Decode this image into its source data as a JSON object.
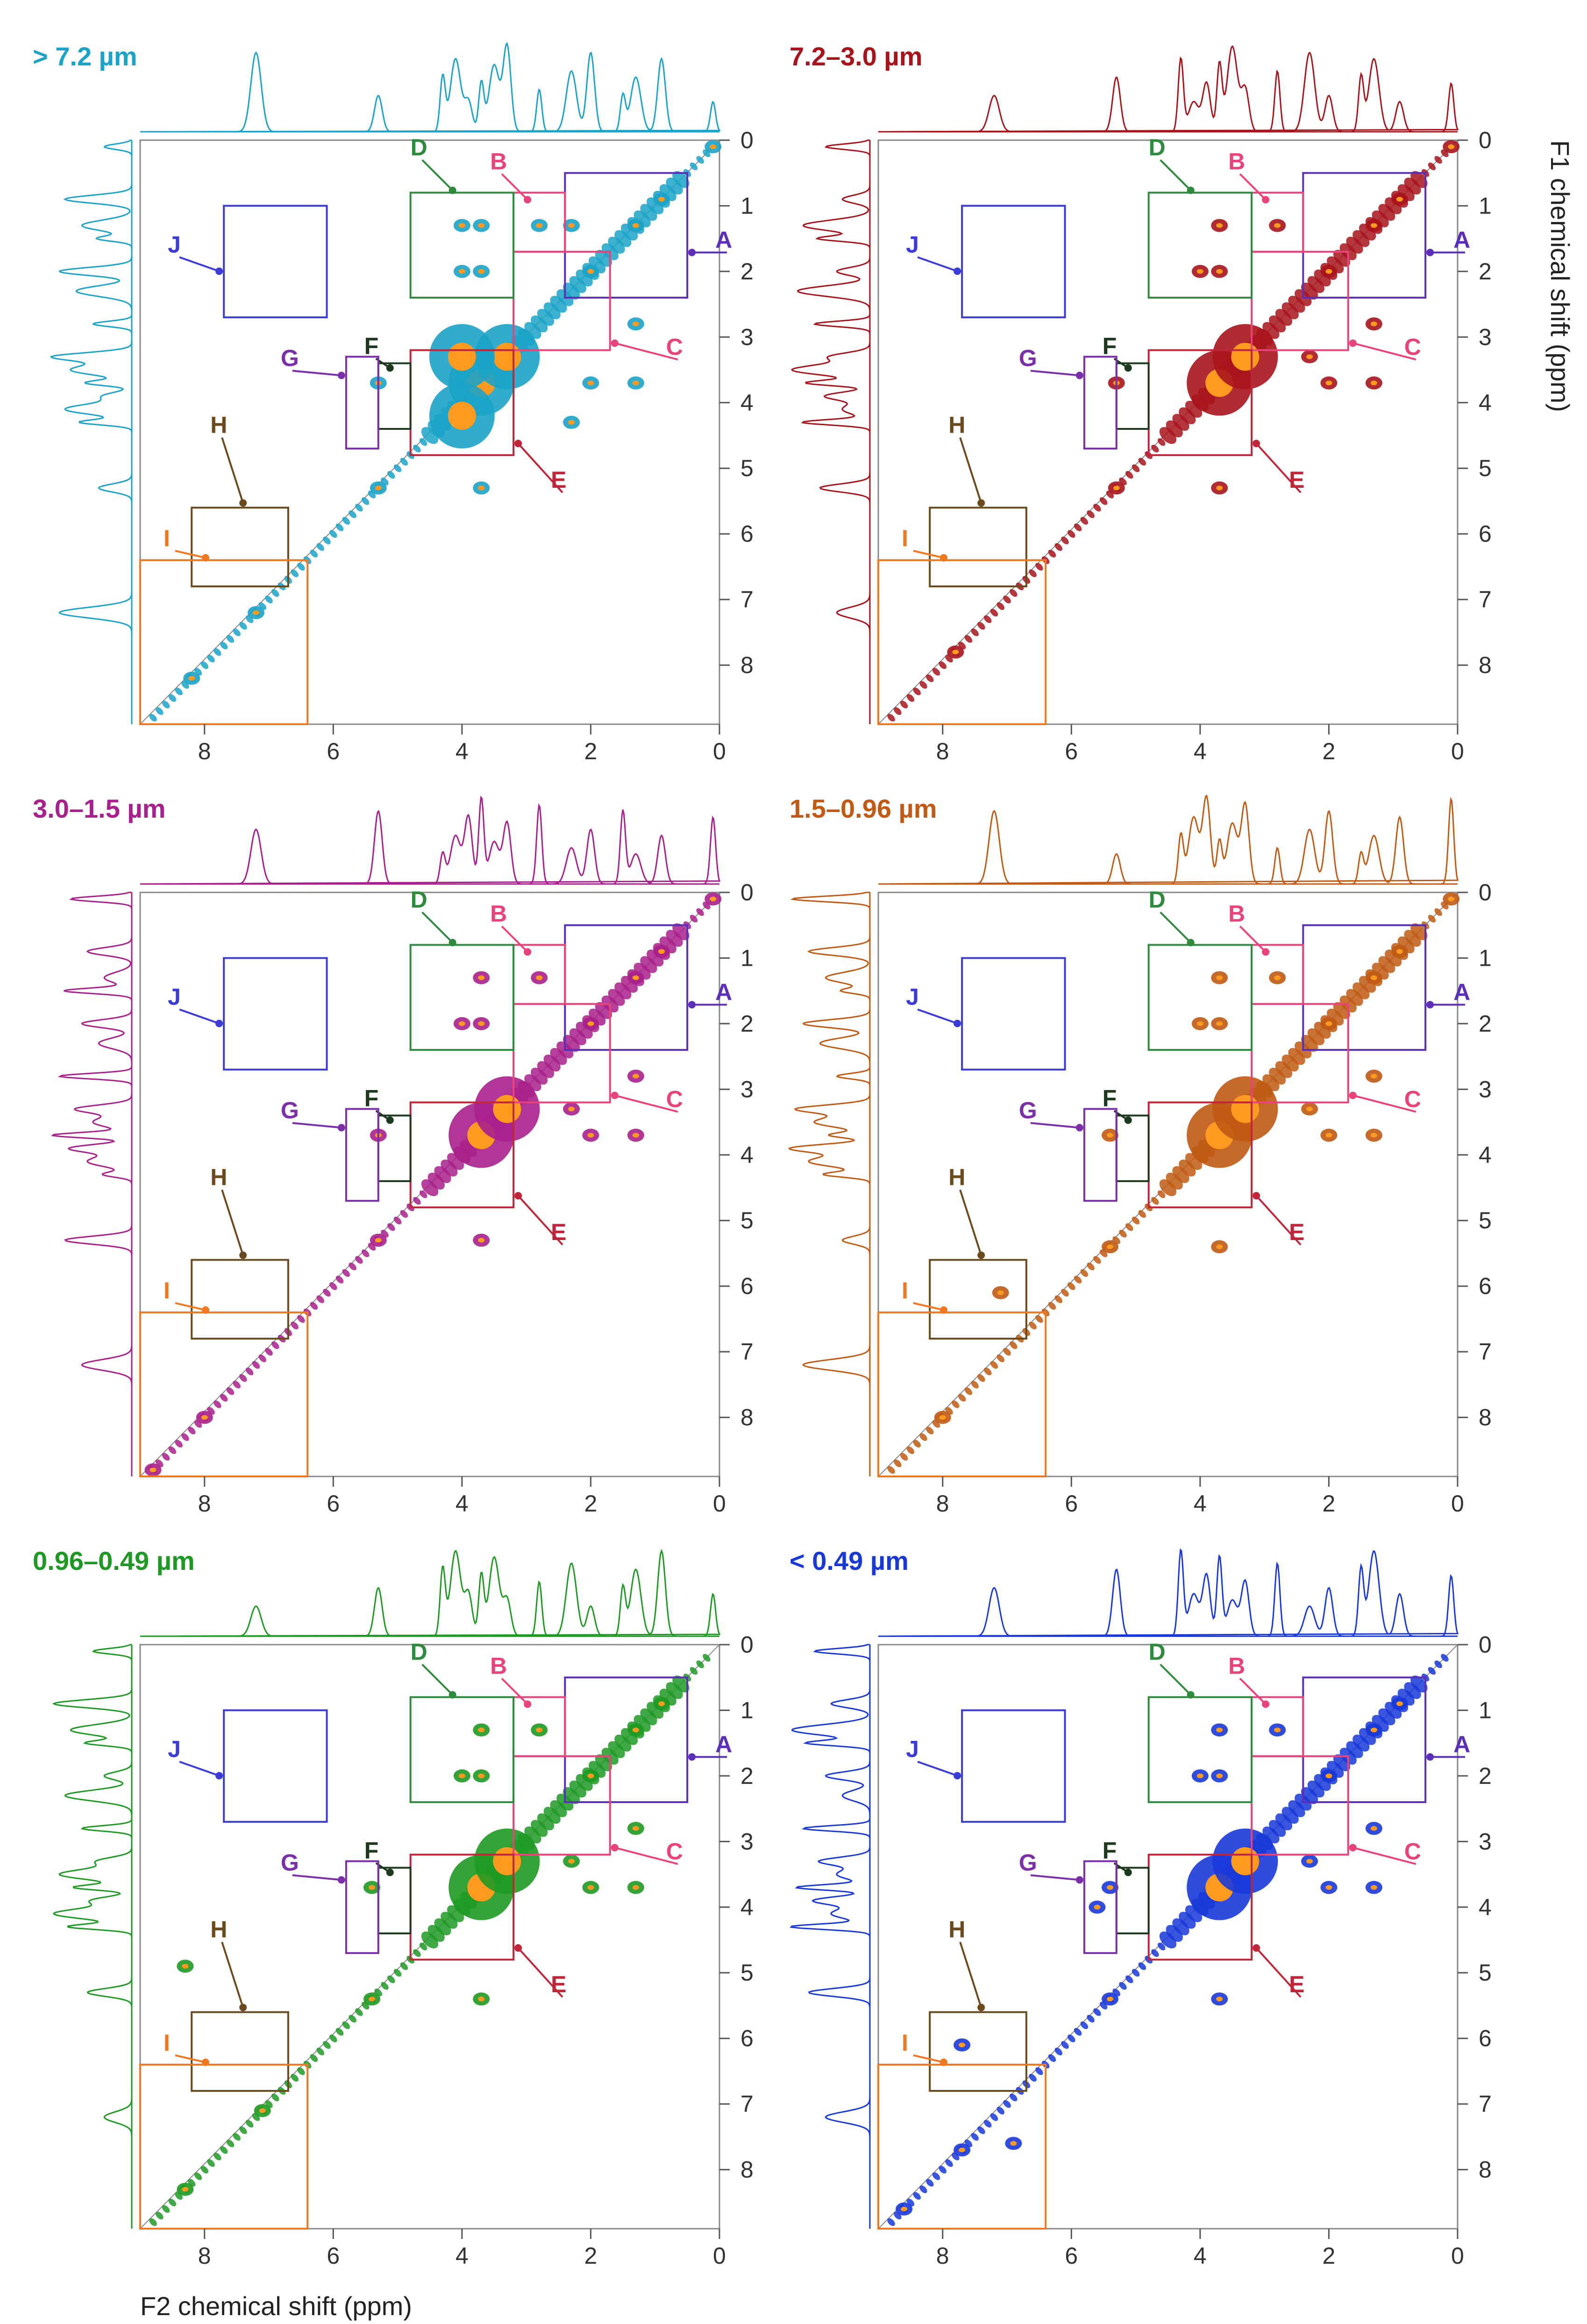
{
  "chart_data": {
    "type": "scatter",
    "description_type": "2D NMR COSY-style spectra with 1D projections",
    "x_axis": {
      "label": "F2 chemical shift (ppm)",
      "range": [
        9,
        0
      ],
      "ticks": [
        8,
        6,
        4,
        2,
        0
      ]
    },
    "y_axis": {
      "label": "F1 chemical shift (ppm)",
      "range": [
        0,
        8.5
      ],
      "ticks": [
        0,
        1,
        2,
        3,
        4,
        5,
        6,
        7,
        8
      ]
    },
    "regions": [
      {
        "label": "A",
        "x": [
          0.5,
          2.4
        ],
        "y": [
          0.5,
          2.4
        ],
        "color": "#5b2fb8"
      },
      {
        "label": "B",
        "x": [
          2.4,
          3.2
        ],
        "y": [
          0.8,
          1.7
        ],
        "color": "#e8437a"
      },
      {
        "label": "C",
        "x": [
          1.7,
          3.2
        ],
        "y": [
          1.7,
          3.2
        ],
        "color": "#e8437a"
      },
      {
        "label": "D",
        "x": [
          3.2,
          4.8
        ],
        "y": [
          0.8,
          2.4
        ],
        "color": "#2e8b3e"
      },
      {
        "label": "E",
        "x": [
          3.2,
          4.8
        ],
        "y": [
          3.2,
          4.8
        ],
        "color": "#c0263a"
      },
      {
        "label": "F",
        "x": [
          4.8,
          5.3
        ],
        "y": [
          3.4,
          4.4
        ],
        "color": "#1e3a1e"
      },
      {
        "label": "G",
        "x": [
          5.3,
          5.8
        ],
        "y": [
          3.3,
          4.7
        ],
        "color": "#7b2fa8"
      },
      {
        "label": "H",
        "x": [
          6.7,
          8.2
        ],
        "y": [
          5.6,
          6.8
        ],
        "color": "#6b4a1e"
      },
      {
        "label": "I",
        "x": [
          6.4,
          9.0
        ],
        "y": [
          6.4,
          9.0
        ],
        "color": "#f07820"
      },
      {
        "label": "J",
        "x": [
          6.1,
          7.7
        ],
        "y": [
          1.0,
          2.7
        ],
        "color": "#3b3bd8"
      }
    ],
    "panels": [
      {
        "title": "> 7.2 µm",
        "color": "#1ba3c8",
        "regions_shown": [
          "A",
          "B",
          "C",
          "D",
          "E",
          "F",
          "G",
          "H",
          "I",
          "J"
        ],
        "peaks": [
          [
            0.1,
            0.1
          ],
          [
            3.7,
            3.7
          ],
          [
            3.3,
            3.3
          ],
          [
            2.0,
            2.0
          ],
          [
            1.3,
            1.3
          ],
          [
            0.9,
            0.9
          ],
          [
            5.3,
            5.3
          ],
          [
            7.2,
            7.2
          ],
          [
            8.2,
            8.2
          ],
          [
            3.7,
            1.3
          ],
          [
            3.7,
            2.0
          ],
          [
            2.0,
            3.7
          ],
          [
            1.3,
            3.7
          ],
          [
            3.7,
            5.3
          ],
          [
            5.3,
            3.7
          ],
          [
            2.8,
            1.3
          ],
          [
            1.3,
            2.8
          ],
          [
            4.0,
            1.3
          ],
          [
            4.0,
            2.0
          ],
          [
            4.0,
            3.3
          ],
          [
            4.0,
            4.2
          ],
          [
            2.3,
            4.3
          ],
          [
            2.3,
            1.3
          ]
        ]
      },
      {
        "title": "7.2–3.0 µm",
        "color": "#a8141c",
        "regions_shown": [
          "A",
          "B",
          "C",
          "D",
          "E",
          "F",
          "G",
          "H",
          "I",
          "J"
        ],
        "peaks": [
          [
            0.1,
            0.1
          ],
          [
            3.7,
            3.7
          ],
          [
            3.3,
            3.3
          ],
          [
            2.0,
            2.0
          ],
          [
            1.3,
            1.3
          ],
          [
            0.9,
            0.9
          ],
          [
            5.3,
            5.3
          ],
          [
            7.8,
            7.8
          ],
          [
            3.7,
            1.3
          ],
          [
            3.7,
            2.0
          ],
          [
            2.0,
            3.7
          ],
          [
            1.3,
            3.7
          ],
          [
            3.7,
            5.3
          ],
          [
            5.3,
            3.7
          ],
          [
            2.8,
            1.3
          ],
          [
            1.3,
            2.8
          ],
          [
            4.0,
            2.0
          ],
          [
            2.3,
            3.3
          ]
        ]
      },
      {
        "title": "3.0–1.5 µm",
        "color": "#a8208c",
        "regions_shown": [
          "A",
          "B",
          "C",
          "D",
          "E",
          "F",
          "G",
          "H",
          "I",
          "J"
        ],
        "peaks": [
          [
            0.1,
            0.1
          ],
          [
            3.7,
            3.7
          ],
          [
            3.3,
            3.3
          ],
          [
            2.0,
            2.0
          ],
          [
            1.3,
            1.3
          ],
          [
            0.9,
            0.9
          ],
          [
            5.3,
            5.3
          ],
          [
            8.0,
            8.0
          ],
          [
            3.7,
            1.3
          ],
          [
            3.7,
            2.0
          ],
          [
            2.0,
            3.7
          ],
          [
            1.3,
            3.7
          ],
          [
            3.7,
            5.3
          ],
          [
            5.3,
            3.7
          ],
          [
            2.8,
            1.3
          ],
          [
            1.3,
            2.8
          ],
          [
            4.0,
            2.0
          ],
          [
            2.3,
            3.3
          ],
          [
            8.8,
            8.8
          ]
        ]
      },
      {
        "title": "1.5–0.96 µm",
        "color": "#c05a14",
        "regions_shown": [
          "A",
          "B",
          "C",
          "D",
          "E",
          "F",
          "G",
          "H",
          "I",
          "J"
        ],
        "peaks": [
          [
            0.1,
            0.1
          ],
          [
            3.7,
            3.7
          ],
          [
            3.3,
            3.3
          ],
          [
            2.0,
            2.0
          ],
          [
            1.3,
            1.3
          ],
          [
            0.9,
            0.9
          ],
          [
            5.4,
            5.4
          ],
          [
            8.0,
            8.0
          ],
          [
            3.7,
            1.3
          ],
          [
            3.7,
            2.0
          ],
          [
            2.0,
            3.7
          ],
          [
            1.3,
            3.7
          ],
          [
            3.7,
            5.4
          ],
          [
            5.4,
            3.7
          ],
          [
            2.8,
            1.3
          ],
          [
            1.3,
            2.8
          ],
          [
            4.0,
            2.0
          ],
          [
            2.3,
            3.3
          ],
          [
            7.1,
            6.1
          ]
        ]
      },
      {
        "title": "0.96–0.49 µm",
        "color": "#1e9a24",
        "regions_shown": [
          "A",
          "B",
          "C",
          "D",
          "E",
          "F",
          "G",
          "H",
          "I",
          "J"
        ],
        "peaks": [
          [
            3.7,
            3.7
          ],
          [
            3.3,
            3.3
          ],
          [
            2.0,
            2.0
          ],
          [
            1.3,
            1.3
          ],
          [
            0.9,
            0.9
          ],
          [
            5.4,
            5.4
          ],
          [
            7.1,
            7.1
          ],
          [
            8.3,
            8.3
          ],
          [
            3.7,
            1.3
          ],
          [
            3.7,
            2.0
          ],
          [
            2.0,
            3.7
          ],
          [
            1.3,
            3.7
          ],
          [
            3.7,
            5.4
          ],
          [
            5.4,
            3.7
          ],
          [
            2.8,
            1.3
          ],
          [
            1.3,
            2.8
          ],
          [
            4.0,
            2.0
          ],
          [
            2.3,
            3.3
          ],
          [
            8.3,
            4.9
          ]
        ]
      },
      {
        "title": "< 0.49 µm",
        "color": "#1838d8",
        "regions_shown": [
          "A",
          "B",
          "C",
          "D",
          "E",
          "F",
          "G",
          "H",
          "I",
          "J"
        ],
        "peaks": [
          [
            3.7,
            3.7
          ],
          [
            3.3,
            3.3
          ],
          [
            2.0,
            2.0
          ],
          [
            1.3,
            1.3
          ],
          [
            0.9,
            0.9
          ],
          [
            5.4,
            5.4
          ],
          [
            7.7,
            7.7
          ],
          [
            8.6,
            8.6
          ],
          [
            3.7,
            1.3
          ],
          [
            3.7,
            2.0
          ],
          [
            2.0,
            3.7
          ],
          [
            1.3,
            3.7
          ],
          [
            3.7,
            5.4
          ],
          [
            5.4,
            3.7
          ],
          [
            2.8,
            1.3
          ],
          [
            1.3,
            2.8
          ],
          [
            4.0,
            2.0
          ],
          [
            2.3,
            3.3
          ],
          [
            7.7,
            6.1
          ],
          [
            6.9,
            7.6
          ],
          [
            5.6,
            4.0
          ]
        ]
      }
    ],
    "projection_peaks": [
      0.1,
      0.9,
      1.3,
      1.5,
      2.0,
      2.3,
      2.8,
      3.3,
      3.5,
      3.7,
      3.9,
      4.1,
      4.3,
      5.3,
      7.2
    ],
    "grid": false
  }
}
